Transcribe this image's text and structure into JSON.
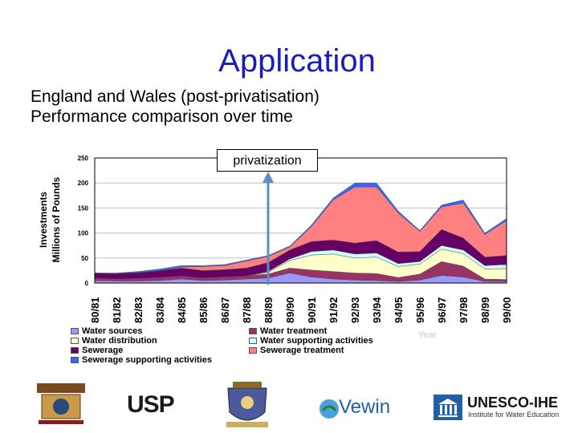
{
  "slide": {
    "title": "Application",
    "subtitle_line1": "England and Wales (post-privatisation)",
    "subtitle_line2": "Performance comparison over time",
    "annotation": "privatization",
    "year_label": "Year"
  },
  "logos": {
    "usp": "USP",
    "vewin": "Vewin",
    "unesco_main": "UNESCO-IHE",
    "unesco_sub": "Institute for Water Education"
  },
  "chart_data": {
    "type": "area",
    "stacked": true,
    "ylabel_line1": "Investments",
    "ylabel_line2": "Millions of Pounds",
    "xlabel": "Year",
    "ylim": [
      0,
      250
    ],
    "yticks": [
      0,
      50,
      100,
      150,
      200,
      250
    ],
    "grid": true,
    "legend_position": "bottom",
    "annotation_category": "88/89",
    "categories": [
      "80/81",
      "81/82",
      "82/83",
      "83/84",
      "84/85",
      "85/86",
      "86/87",
      "87/88",
      "88/89",
      "89/90",
      "90/91",
      "91/92",
      "92/93",
      "93/94",
      "94/95",
      "95/96",
      "96/97",
      "97/98",
      "98/99",
      "99/00"
    ],
    "series": [
      {
        "name": "Water sources",
        "color": "#9999ff",
        "values": [
          5,
          4,
          4,
          5,
          8,
          5,
          6,
          8,
          10,
          20,
          12,
          8,
          6,
          5,
          3,
          6,
          15,
          12,
          3,
          3
        ]
      },
      {
        "name": "Water treatment",
        "color": "#993366",
        "values": [
          5,
          4,
          5,
          6,
          6,
          5,
          6,
          6,
          8,
          10,
          14,
          15,
          14,
          14,
          8,
          12,
          28,
          22,
          5,
          4
        ]
      },
      {
        "name": "Water distribution",
        "color": "#ffffcc",
        "values": [
          0,
          0,
          0,
          0,
          0,
          0,
          0,
          0,
          3,
          15,
          30,
          35,
          30,
          33,
          22,
          20,
          25,
          25,
          20,
          22
        ]
      },
      {
        "name": "Water supporting activities",
        "color": "#ccffff",
        "values": [
          0,
          0,
          0,
          0,
          0,
          0,
          0,
          0,
          2,
          3,
          7,
          8,
          8,
          8,
          6,
          5,
          7,
          7,
          7,
          8
        ]
      },
      {
        "name": "Sewerage",
        "color": "#660066",
        "values": [
          10,
          11,
          12,
          14,
          16,
          15,
          15,
          16,
          18,
          18,
          20,
          20,
          22,
          25,
          23,
          20,
          32,
          24,
          17,
          18
        ]
      },
      {
        "name": "Sewerage treatment",
        "color": "#ff8080",
        "values": [
          0,
          0,
          0,
          0,
          2,
          8,
          8,
          14,
          12,
          6,
          30,
          80,
          112,
          107,
          78,
          40,
          45,
          70,
          45,
          70
        ]
      },
      {
        "name": "Sewerage supporting activities",
        "color": "#3366ff",
        "values": [
          0,
          1,
          2,
          3,
          3,
          2,
          2,
          2,
          2,
          2,
          3,
          4,
          8,
          8,
          4,
          2,
          4,
          6,
          3,
          4
        ]
      }
    ]
  }
}
